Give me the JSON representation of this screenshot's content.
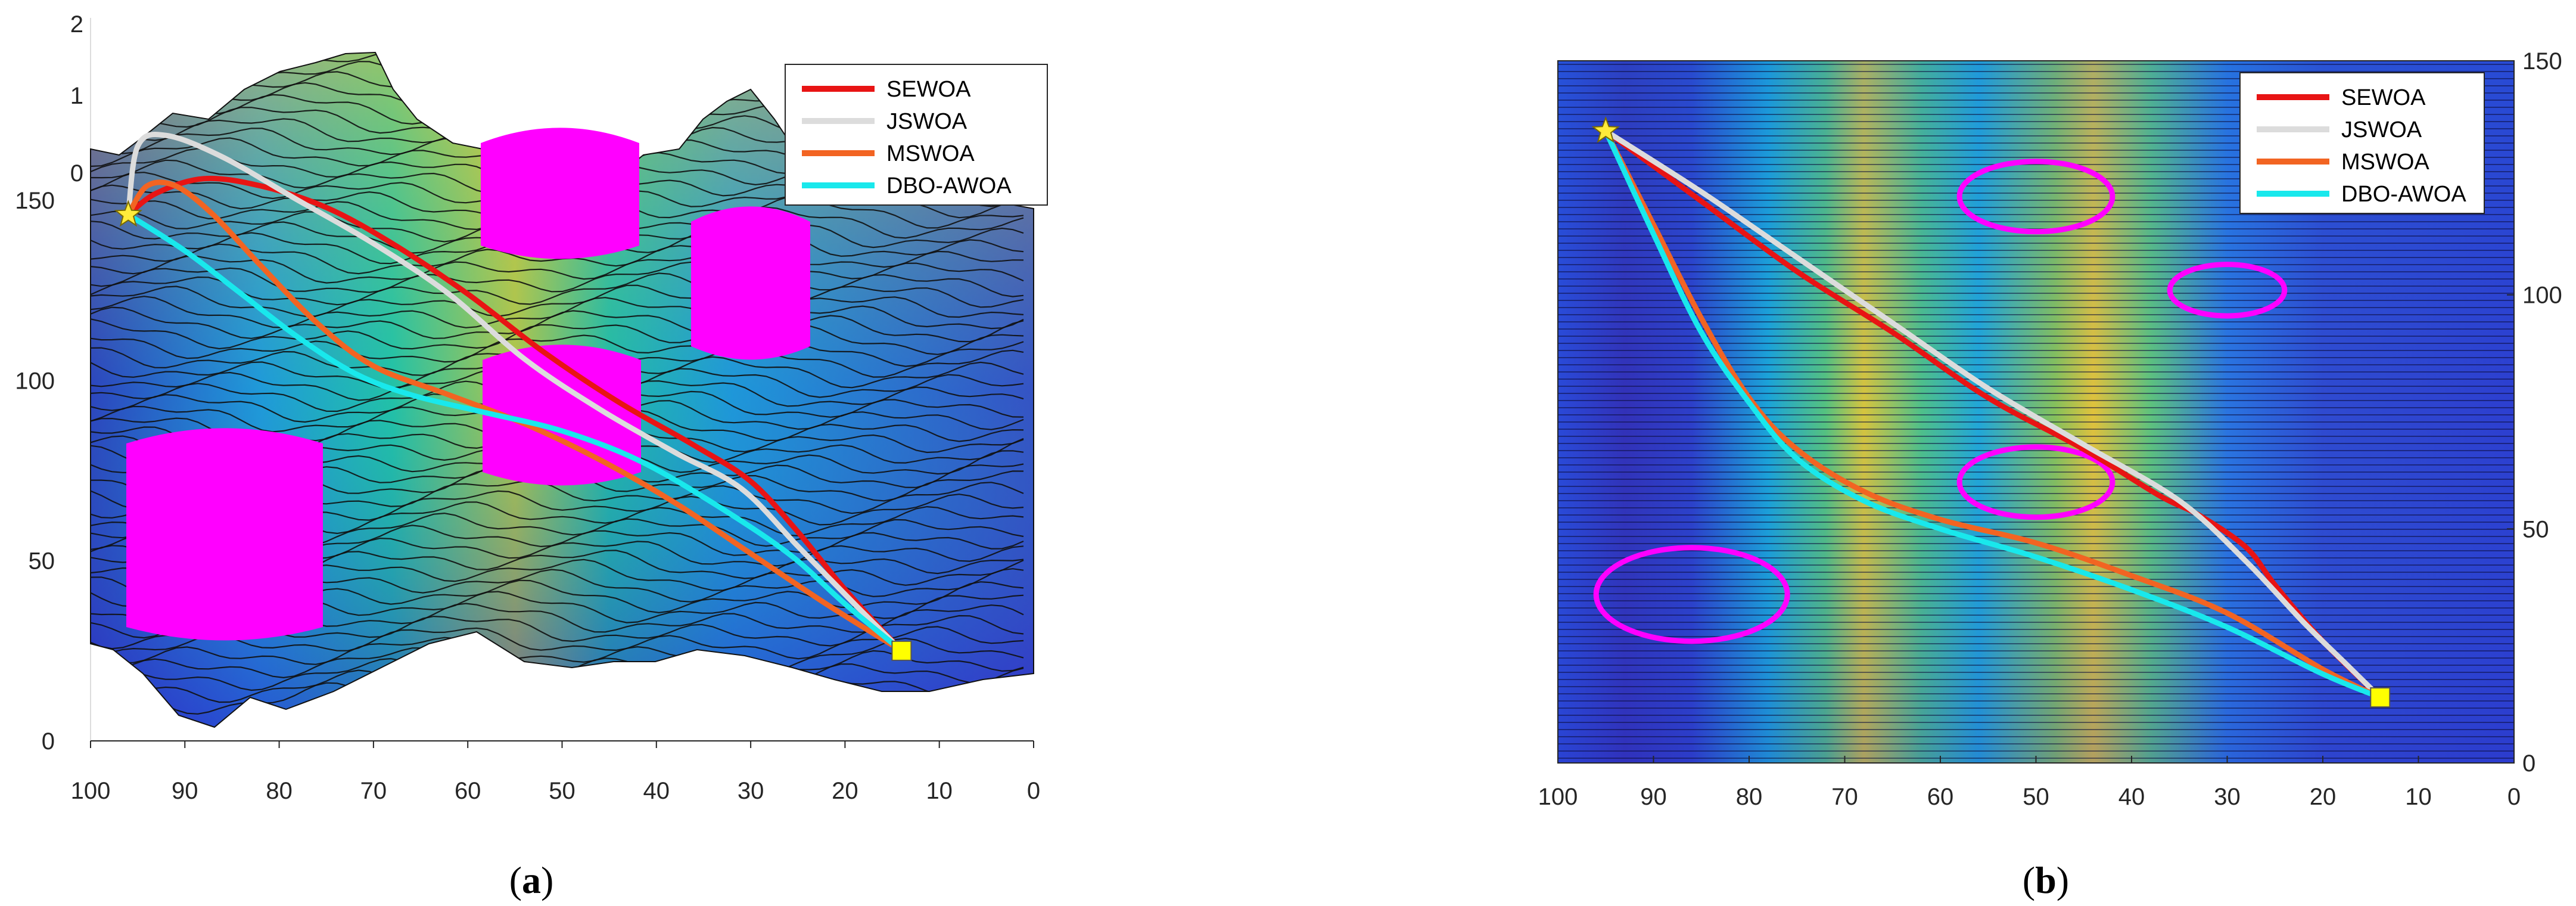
{
  "chart_data": [
    {
      "panel": "a",
      "type": "line",
      "caption_open": "(",
      "caption_letter": "a",
      "caption_close": ")",
      "title": "",
      "xlabel": "",
      "ylabel": "",
      "xlim": [
        100,
        0
      ],
      "ylim": [
        0,
        150
      ],
      "zlim": [
        0,
        2
      ],
      "xticks": [
        "100",
        "90",
        "80",
        "70",
        "60",
        "50",
        "40",
        "30",
        "20",
        "10",
        "0"
      ],
      "yticks": [
        "0",
        "50",
        "100",
        "150"
      ],
      "zticks": [
        "0",
        "1",
        "2"
      ],
      "grid": true,
      "legend_position": "top-right",
      "start": {
        "x": 96,
        "y": 146,
        "marker": "star"
      },
      "goal": {
        "x": 14,
        "y": 25,
        "marker": "square"
      },
      "obstacle_color": "#ff00ff",
      "surface_colormap": [
        "#3a2bd6",
        "#1f8ee8",
        "#24c3a8",
        "#9fcf3a",
        "#f5c933"
      ],
      "series": [
        {
          "name": "SEWOA",
          "color": "#e81414",
          "x": [
            96,
            93,
            88,
            82,
            75,
            68,
            60,
            52,
            44,
            36,
            30,
            25,
            20,
            14
          ],
          "y": [
            146,
            152,
            156,
            154,
            148,
            138,
            124,
            108,
            94,
            82,
            72,
            58,
            42,
            25
          ]
        },
        {
          "name": "JSWOA",
          "color": "#dcdcdc",
          "x": [
            96,
            95,
            92,
            86,
            78,
            70,
            62,
            54,
            46,
            38,
            31,
            25,
            19,
            14
          ],
          "y": [
            146,
            165,
            168,
            162,
            150,
            138,
            124,
            106,
            92,
            80,
            70,
            54,
            38,
            25
          ]
        },
        {
          "name": "MSWOA",
          "color": "#f26422",
          "x": [
            96,
            94,
            91,
            87,
            82,
            76,
            70,
            62,
            54,
            46,
            38,
            30,
            22,
            14
          ],
          "y": [
            146,
            154,
            154,
            146,
            132,
            116,
            104,
            96,
            88,
            78,
            66,
            52,
            38,
            25
          ]
        },
        {
          "name": "DBO-AWOA",
          "color": "#19e8ec",
          "x": [
            96,
            90,
            84,
            78,
            72,
            66,
            58,
            50,
            42,
            34,
            26,
            20,
            14
          ],
          "y": [
            146,
            136,
            124,
            112,
            102,
            96,
            91,
            86,
            78,
            66,
            52,
            38,
            25
          ]
        }
      ]
    },
    {
      "panel": "b",
      "type": "line",
      "caption_open": "(",
      "caption_letter": "b",
      "caption_close": ")",
      "title": "",
      "xlabel": "",
      "ylabel": "",
      "xlim": [
        100,
        0
      ],
      "ylim": [
        0,
        150
      ],
      "xticks": [
        "100",
        "90",
        "80",
        "70",
        "60",
        "50",
        "40",
        "30",
        "20",
        "10",
        "0"
      ],
      "yticks": [
        "0",
        "50",
        "100",
        "150"
      ],
      "grid": true,
      "legend_position": "top-right",
      "start": {
        "x": 95,
        "y": 135,
        "marker": "star"
      },
      "goal": {
        "x": 14,
        "y": 14,
        "marker": "square"
      },
      "obstacle_color": "#ff00ff",
      "obstacles": [
        {
          "cx": 50,
          "cy": 121,
          "rx": 8,
          "ry": 7.5
        },
        {
          "cx": 30,
          "cy": 101,
          "rx": 6,
          "ry": 5.5
        },
        {
          "cx": 50,
          "cy": 60,
          "rx": 8,
          "ry": 7.5
        },
        {
          "cx": 86,
          "cy": 36,
          "rx": 10,
          "ry": 10
        }
      ],
      "series": [
        {
          "name": "SEWOA",
          "color": "#e81414",
          "x": [
            95,
            85,
            75,
            65,
            55,
            45,
            37,
            33,
            28,
            25,
            20,
            14
          ],
          "y": [
            135,
            120,
            105,
            92,
            78,
            67,
            57,
            53,
            46,
            38,
            26,
            14
          ]
        },
        {
          "name": "JSWOA",
          "color": "#dcdcdc",
          "x": [
            95,
            85,
            75,
            65,
            55,
            45,
            35,
            28,
            22,
            18,
            14
          ],
          "y": [
            135,
            122,
            108,
            94,
            80,
            68,
            56,
            43,
            30,
            22,
            14
          ]
        },
        {
          "name": "MSWOA",
          "color": "#f26422",
          "x": [
            95,
            90,
            85,
            80,
            75,
            68,
            60,
            50,
            40,
            30,
            20,
            14
          ],
          "y": [
            135,
            115,
            95,
            78,
            67,
            58,
            52,
            47,
            40,
            32,
            20,
            14
          ]
        },
        {
          "name": "DBO-AWOA",
          "color": "#19e8ec",
          "x": [
            95,
            90,
            85,
            80,
            75,
            68,
            60,
            50,
            40,
            30,
            20,
            14
          ],
          "y": [
            135,
            113,
            92,
            77,
            65,
            56,
            50,
            44,
            37,
            29,
            19,
            14
          ]
        }
      ]
    }
  ]
}
